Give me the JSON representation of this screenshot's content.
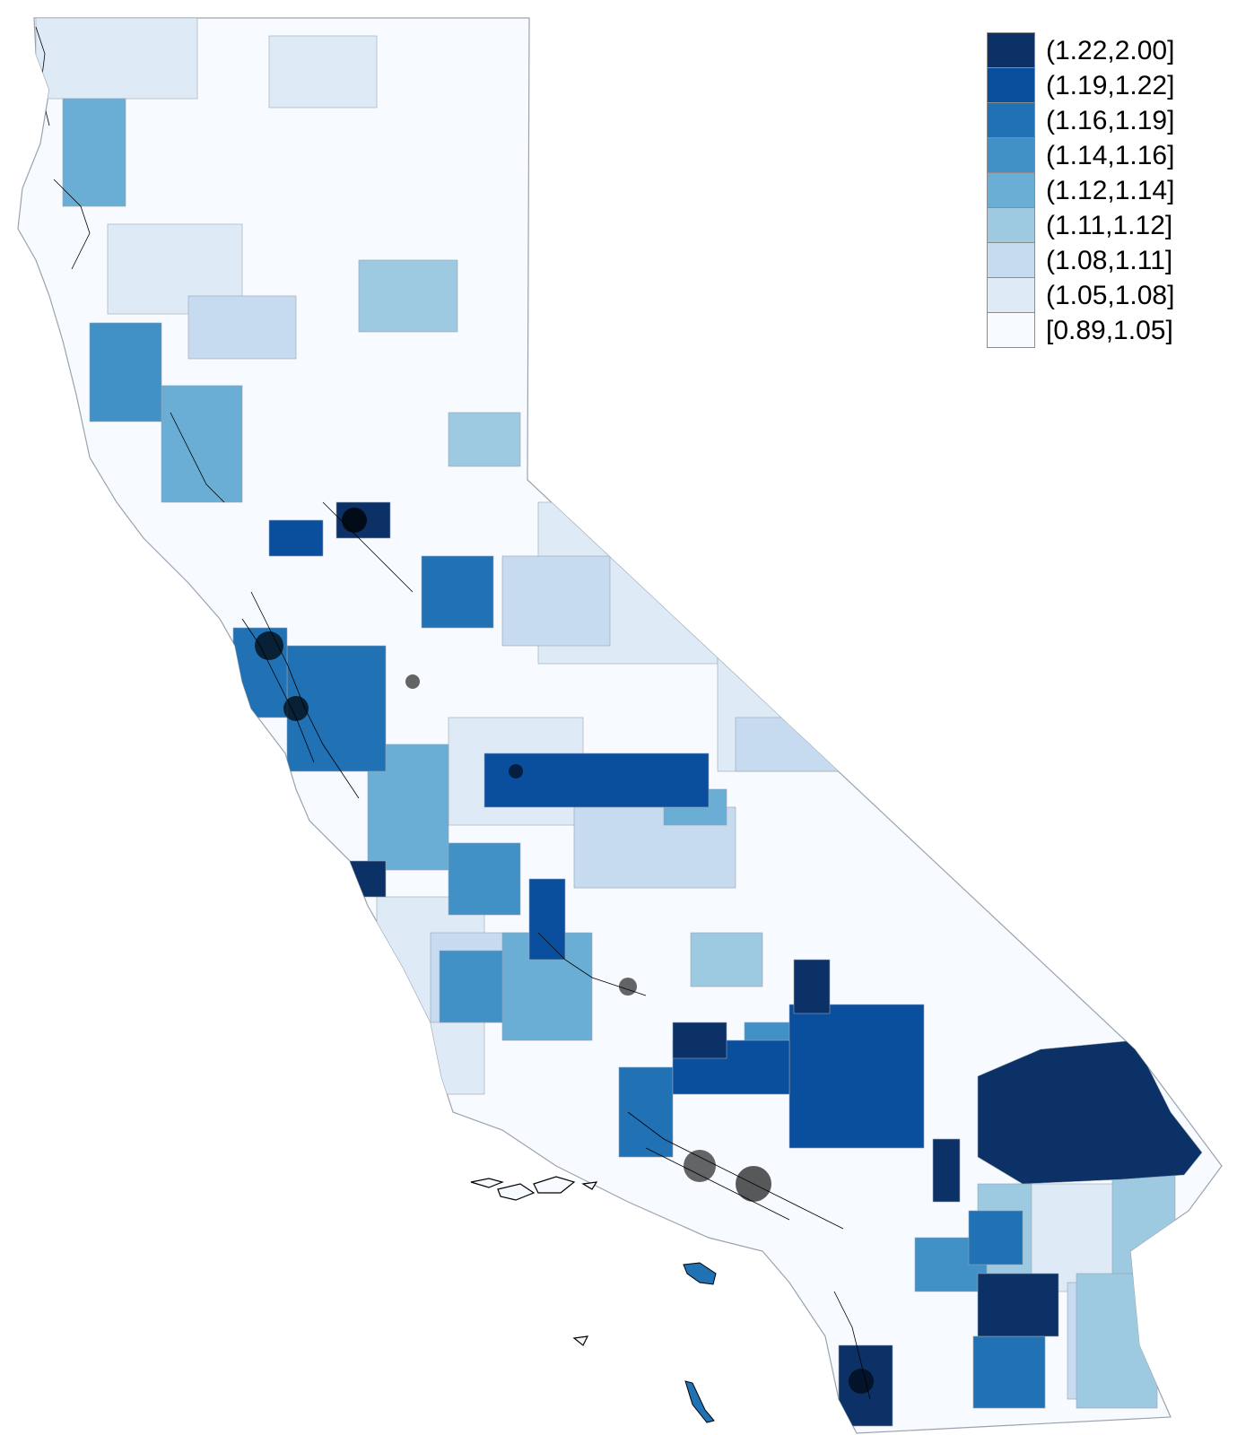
{
  "legend": {
    "items": [
      {
        "label": "(1.22,2.00]",
        "color": "#0b3166"
      },
      {
        "label": "(1.19,1.22]",
        "color": "#0a4f9d"
      },
      {
        "label": "(1.16,1.19]",
        "color": "#2171b5"
      },
      {
        "label": "(1.14,1.16]",
        "color": "#4291c6"
      },
      {
        "label": "(1.12,1.14]",
        "color": "#6aaed6"
      },
      {
        "label": "(1.11,1.12]",
        "color": "#9ecae1"
      },
      {
        "label": "(1.08,1.11]",
        "color": "#c6dbef"
      },
      {
        "label": "(1.05,1.08]",
        "color": "#deebf7"
      },
      {
        "label": "[0.89,1.05]",
        "color": "#f7fbff"
      }
    ]
  },
  "map": {
    "region": "California",
    "outline_color": "#9aa3ad",
    "urban_line_color": "#000000"
  }
}
